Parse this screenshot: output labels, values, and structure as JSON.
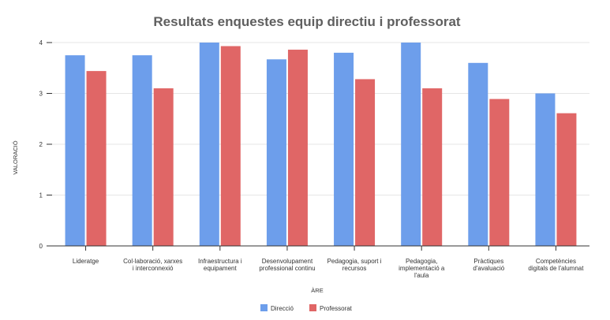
{
  "chart_data": {
    "type": "bar",
    "title": "Resultats enquestes equip directiu i professorat",
    "xlabel": "ÀRE",
    "ylabel": "VALORACIÓ",
    "ylim": [
      0,
      4
    ],
    "yticks": [
      0,
      1,
      2,
      3,
      4
    ],
    "grid": true,
    "legend_position": "bottom",
    "categories": [
      [
        "Lideratge"
      ],
      [
        "Col·laboració, xarxes",
        "i interconnexió"
      ],
      [
        "Infraestructura i",
        "equipament"
      ],
      [
        "Desenvolupament",
        "professional continu"
      ],
      [
        "Pedagogia, suport i",
        "recursos"
      ],
      [
        "Pedagogia,",
        "implementació a",
        "l'aula"
      ],
      [
        "Pràctiques",
        "d'avaluació"
      ],
      [
        "Competències",
        "digitals de l'alumnat"
      ]
    ],
    "series": [
      {
        "name": "Direcció",
        "color": "#6d9eeb",
        "values": [
          3.75,
          3.75,
          4.0,
          3.67,
          3.8,
          4.0,
          3.6,
          3.0
        ]
      },
      {
        "name": "Professorat",
        "color": "#e06666",
        "values": [
          3.44,
          3.1,
          3.93,
          3.86,
          3.28,
          3.1,
          2.89,
          2.61
        ]
      }
    ]
  }
}
